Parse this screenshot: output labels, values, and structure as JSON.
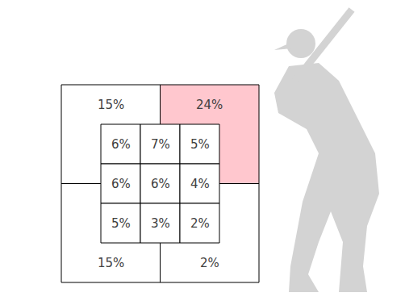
{
  "chart_data": {
    "type": "zone",
    "data_labels": true,
    "inner": {
      "values": [
        [
          6,
          7,
          5
        ],
        [
          6,
          6,
          4
        ],
        [
          5,
          3,
          2
        ]
      ],
      "value_labels": [
        [
          "6%",
          "7%",
          "5%"
        ],
        [
          "6%",
          "6%",
          "4%"
        ],
        [
          "5%",
          "3%",
          "2%"
        ]
      ],
      "colors": [
        [
          "#ffffff",
          "#ffffff",
          "#ffffff"
        ],
        [
          "#ffffff",
          "#ffffff",
          "#ffffff"
        ],
        [
          "#ffffff",
          "#ffffff",
          "#ffffff"
        ]
      ]
    },
    "outer": {
      "values": [
        15,
        24,
        15,
        2
      ],
      "value_labels": [
        "15%",
        "24%",
        "15%",
        "2%"
      ],
      "colors": [
        "#ffffff",
        "#ffc7ce",
        "#ffffff",
        "#ffffff"
      ]
    }
  }
}
